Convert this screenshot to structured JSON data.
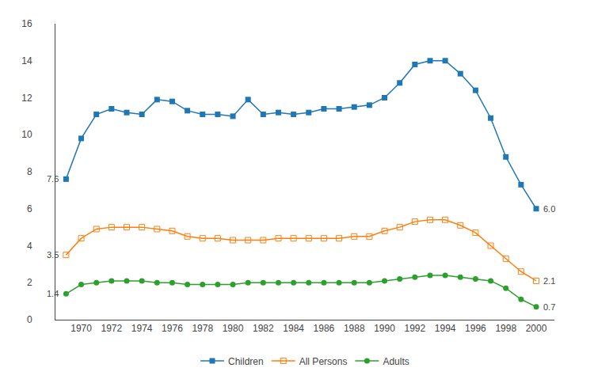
{
  "chart_data": {
    "type": "line",
    "x": [
      1969,
      1970,
      1971,
      1972,
      1973,
      1974,
      1975,
      1976,
      1977,
      1978,
      1979,
      1980,
      1981,
      1982,
      1983,
      1984,
      1985,
      1986,
      1987,
      1988,
      1989,
      1990,
      1991,
      1992,
      1993,
      1994,
      1995,
      1996,
      1997,
      1998,
      1999,
      2000
    ],
    "series": [
      {
        "name": "Children",
        "marker": "square",
        "line_style": "solid",
        "values": [
          7.6,
          9.8,
          11.1,
          11.4,
          11.2,
          11.1,
          11.9,
          11.8,
          11.3,
          11.1,
          11.1,
          11.0,
          11.9,
          11.1,
          11.2,
          11.1,
          11.2,
          11.4,
          11.4,
          11.5,
          11.6,
          12.0,
          12.8,
          13.8,
          14.0,
          14.0,
          13.3,
          12.4,
          10.9,
          8.8,
          7.3,
          6.0
        ]
      },
      {
        "name": "All Persons",
        "marker": "open square",
        "line_style": "solid",
        "values": [
          3.5,
          4.4,
          4.9,
          5.0,
          5.0,
          5.0,
          4.9,
          4.8,
          4.5,
          4.4,
          4.4,
          4.3,
          4.3,
          4.3,
          4.4,
          4.4,
          4.4,
          4.4,
          4.4,
          4.5,
          4.5,
          4.8,
          5.0,
          5.3,
          5.4,
          5.4,
          5.1,
          4.7,
          4.0,
          3.3,
          2.6,
          2.1
        ]
      },
      {
        "name": "Adults",
        "marker": "circle",
        "line_style": "solid",
        "values": [
          1.4,
          1.9,
          2.0,
          2.1,
          2.1,
          2.1,
          2.0,
          2.0,
          1.9,
          1.9,
          1.9,
          1.9,
          2.0,
          2.0,
          2.0,
          2.0,
          2.0,
          2.0,
          2.0,
          2.0,
          2.0,
          2.1,
          2.2,
          2.3,
          2.4,
          2.4,
          2.3,
          2.2,
          2.1,
          1.7,
          1.1,
          0.7
        ]
      }
    ],
    "annotations": [
      {
        "text": "7.6",
        "x": 1969,
        "y": 7.6
      },
      {
        "text": "3.5",
        "x": 1969,
        "y": 3.5
      },
      {
        "text": "1.4",
        "x": 1969,
        "y": 1.4
      },
      {
        "text": "6.0",
        "x": 2000,
        "y": 6.0
      },
      {
        "text": "2.1",
        "x": 2000,
        "y": 2.1
      },
      {
        "text": "0.7",
        "x": 2000,
        "y": 0.7
      }
    ],
    "xlim": [
      1968.3,
      2001.2
    ],
    "xticks": [
      1970,
      1972,
      1974,
      1976,
      1978,
      1980,
      1982,
      1984,
      1986,
      1988,
      1990,
      1992,
      1994,
      1996,
      1998,
      2000
    ],
    "ylim": [
      0,
      16
    ],
    "yticks": [
      0,
      2,
      4,
      6,
      8,
      10,
      12,
      14,
      16
    ],
    "grid": false,
    "legend": "bottom"
  }
}
